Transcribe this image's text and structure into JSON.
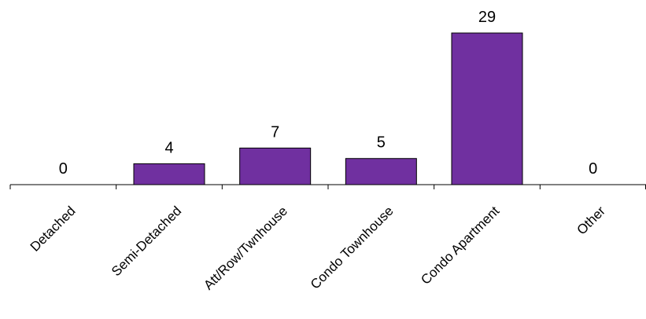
{
  "chart_data": {
    "type": "bar",
    "categories": [
      "Detached",
      "Semi-Detached",
      "Att/Row/Twnhouse",
      "Condo Townhouse",
      "Condo Apartment",
      "Other"
    ],
    "values": [
      0,
      4,
      7,
      5,
      29,
      0
    ],
    "ylim": [
      0,
      29
    ],
    "grid": false,
    "legend": "none",
    "colors": {
      "bar": "#7030a0",
      "bar_edge": "#000000",
      "axis": "#000000"
    }
  }
}
